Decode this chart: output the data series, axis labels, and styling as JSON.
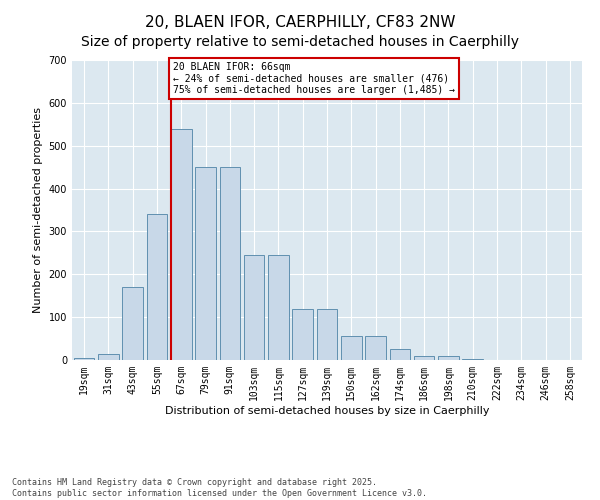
{
  "title1": "20, BLAEN IFOR, CAERPHILLY, CF83 2NW",
  "title2": "Size of property relative to semi-detached houses in Caerphilly",
  "xlabel": "Distribution of semi-detached houses by size in Caerphilly",
  "ylabel": "Number of semi-detached properties",
  "categories": [
    "19sqm",
    "31sqm",
    "43sqm",
    "55sqm",
    "67sqm",
    "79sqm",
    "91sqm",
    "103sqm",
    "115sqm",
    "127sqm",
    "139sqm",
    "150sqm",
    "162sqm",
    "174sqm",
    "186sqm",
    "198sqm",
    "210sqm",
    "222sqm",
    "234sqm",
    "246sqm",
    "258sqm"
  ],
  "values": [
    5,
    15,
    170,
    340,
    540,
    450,
    450,
    245,
    245,
    120,
    120,
    55,
    55,
    25,
    10,
    10,
    2,
    0,
    0,
    0,
    0
  ],
  "bar_color": "#c8d8e8",
  "bar_edge_color": "#6090b0",
  "vline_index": 4,
  "vline_color": "#cc0000",
  "annotation_text": "20 BLAEN IFOR: 66sqm\n← 24% of semi-detached houses are smaller (476)\n75% of semi-detached houses are larger (1,485) →",
  "annotation_box_color": "#cc0000",
  "ylim": [
    0,
    700
  ],
  "yticks": [
    0,
    100,
    200,
    300,
    400,
    500,
    600,
    700
  ],
  "background_color": "#dce8f0",
  "footnote": "Contains HM Land Registry data © Crown copyright and database right 2025.\nContains public sector information licensed under the Open Government Licence v3.0.",
  "title_fontsize": 11,
  "label_fontsize": 8,
  "tick_fontsize": 7,
  "footnote_fontsize": 6
}
